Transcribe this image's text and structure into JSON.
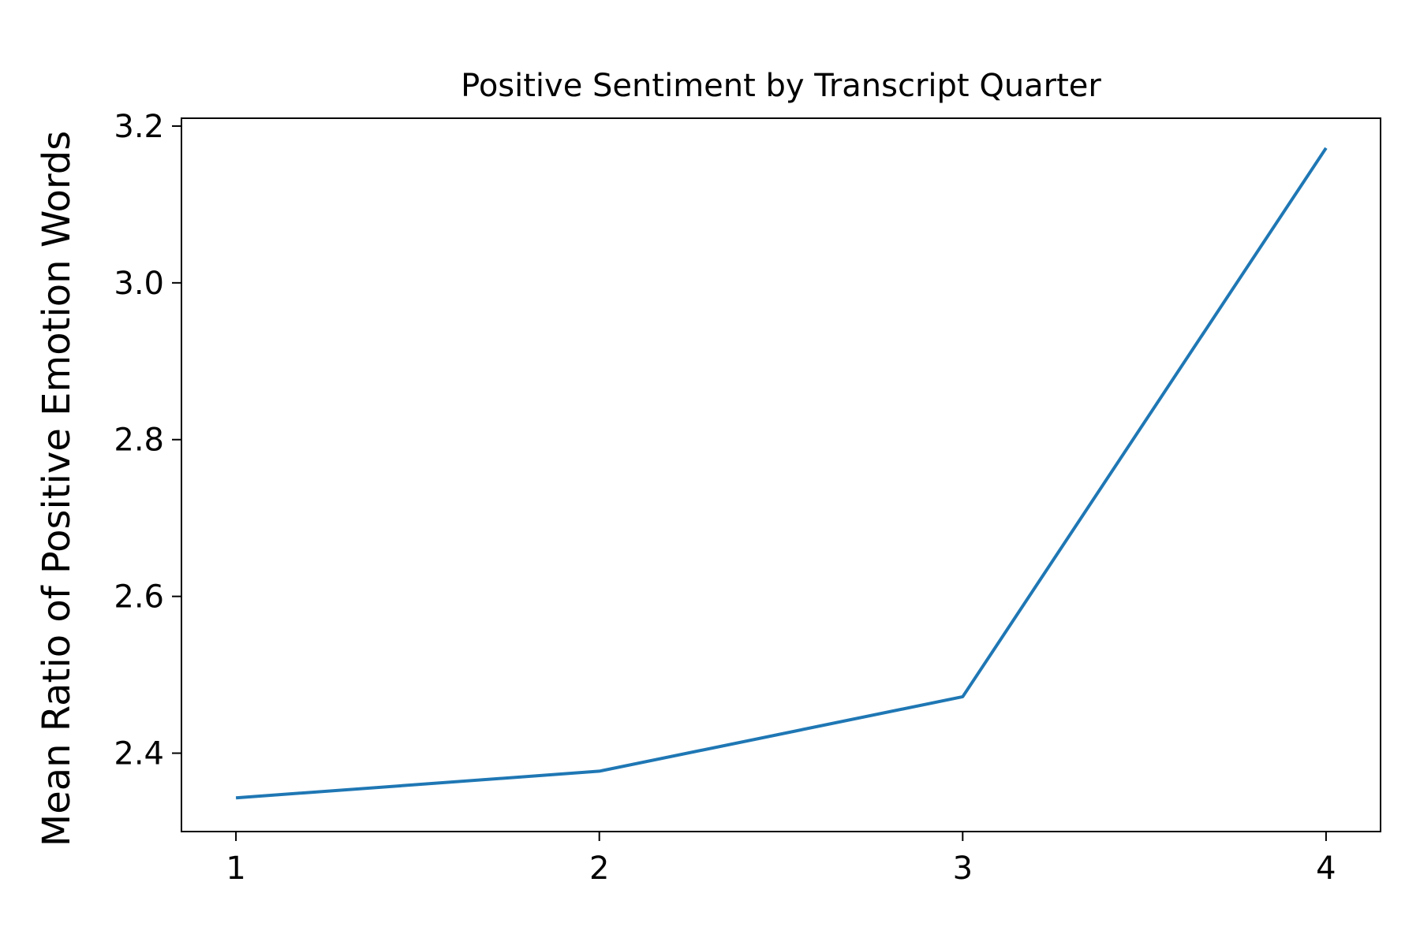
{
  "chart_data": {
    "type": "line",
    "title": "Positive Sentiment by Transcript Quarter",
    "xlabel": "",
    "ylabel": "Mean Ratio of Positive Emotion Words",
    "x": [
      1,
      2,
      3,
      4
    ],
    "x_ticks": [
      "1",
      "2",
      "3",
      "4"
    ],
    "series": [
      {
        "values": [
          2.343,
          2.377,
          2.472,
          3.172
        ],
        "color": "#1f77b4"
      }
    ],
    "xlim": [
      0.85,
      4.15
    ],
    "ylim": [
      2.3,
      3.21
    ],
    "y_ticks": [
      "2.4",
      "2.6",
      "2.8",
      "3.0",
      "3.2"
    ],
    "grid": false,
    "legend": "none"
  }
}
